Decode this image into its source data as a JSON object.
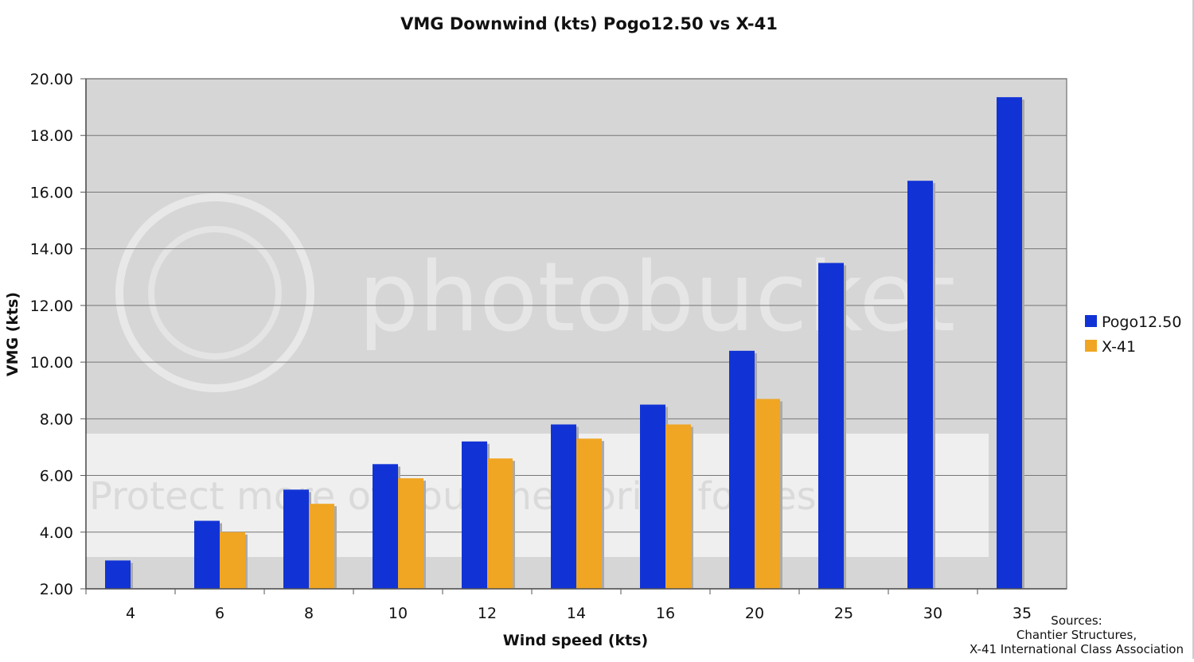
{
  "chart_data": {
    "type": "bar",
    "title": "VMG Downwind (kts) Pogo12.50 vs X-41",
    "xlabel": "Wind speed (kts)",
    "ylabel": "VMG (kts)",
    "categories": [
      "4",
      "6",
      "8",
      "10",
      "12",
      "14",
      "16",
      "20",
      "25",
      "30",
      "35"
    ],
    "ylim": [
      2,
      20
    ],
    "yticks": [
      "2.00",
      "4.00",
      "6.00",
      "8.00",
      "10.00",
      "12.00",
      "14.00",
      "16.00",
      "18.00",
      "20.00"
    ],
    "grid": true,
    "legend_position": "right",
    "series": [
      {
        "name": "Pogo12.50",
        "color": "#1133d6",
        "values": [
          3.0,
          4.4,
          5.5,
          6.4,
          7.2,
          7.8,
          8.5,
          10.4,
          13.5,
          16.4,
          19.35
        ]
      },
      {
        "name": "X-41",
        "color": "#f0a623",
        "values": [
          null,
          4.0,
          5.0,
          5.9,
          6.6,
          7.3,
          7.8,
          8.7,
          null,
          null,
          null
        ]
      }
    ],
    "annotation": [
      "Sources:",
      "Chantier Structures,",
      "X-41 International Class Association"
    ]
  },
  "watermark": {
    "logo": "photobucket",
    "tagline": "Protect more of your memories for less!"
  }
}
